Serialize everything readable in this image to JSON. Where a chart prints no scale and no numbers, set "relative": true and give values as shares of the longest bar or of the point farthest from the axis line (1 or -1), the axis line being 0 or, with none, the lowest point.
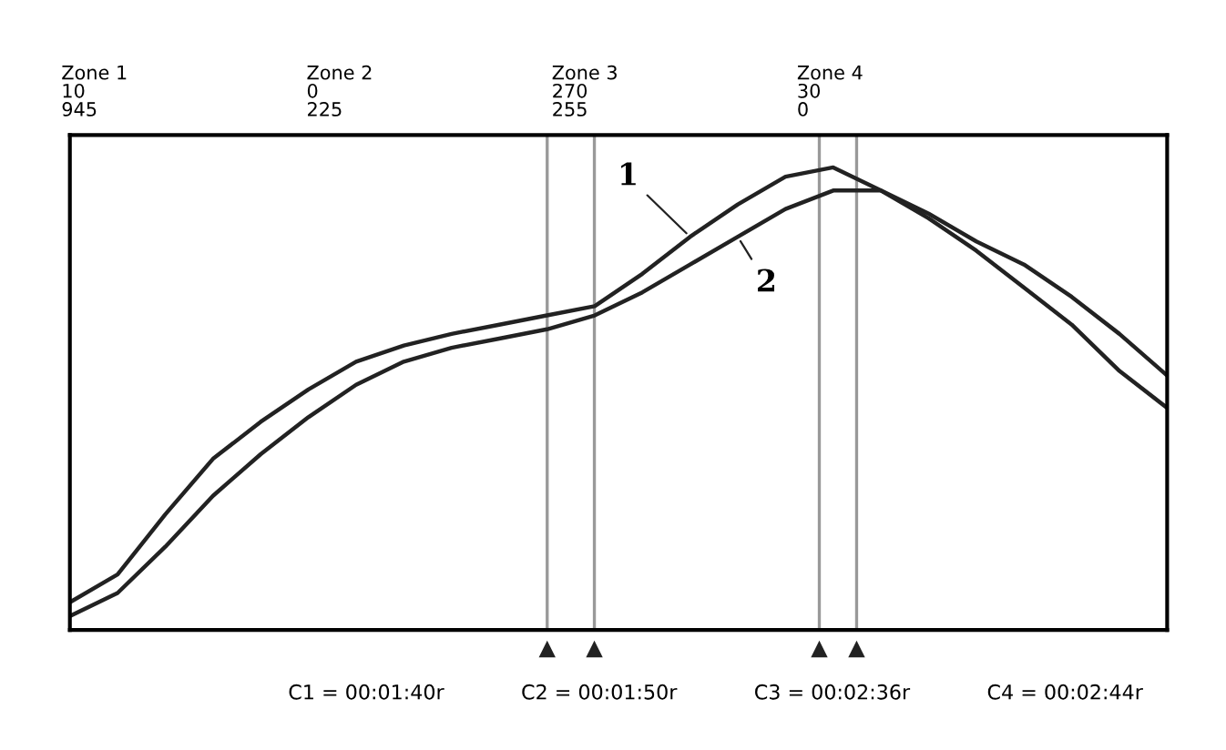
{
  "chart_data": {
    "type": "line",
    "relative": true,
    "categories": [
      null,
      null,
      null,
      null,
      null,
      null,
      null,
      null,
      null,
      null,
      null,
      null,
      null,
      null,
      null,
      null,
      null,
      null,
      null,
      null,
      null,
      null,
      null,
      null
    ],
    "annotations": [
      "Zone 1\n10\n945",
      "Zone 2\n0\n225",
      "Zone 3\n270\n255",
      "Zone 4\n30\n0",
      "C1 = 00:01:40r",
      "C2 = 00:01:50r",
      "C3 = 00:02:36r",
      "C4 = 00:02:44r"
    ],
    "series": [
      {
        "name": "1",
        "color": "#222222",
        "values": [
          0.06,
          0.12,
          0.25,
          0.37,
          0.45,
          0.52,
          0.58,
          0.615,
          0.64,
          0.66,
          0.68,
          0.7,
          0.77,
          0.85,
          0.92,
          0.98,
          1.0,
          0.95,
          0.89,
          0.82,
          0.74,
          0.66,
          0.56,
          0.48
        ]
      },
      {
        "name": "2",
        "color": "#222222",
        "values": [
          0.03,
          0.08,
          0.18,
          0.29,
          0.38,
          0.46,
          0.53,
          0.58,
          0.61,
          0.63,
          0.65,
          0.68,
          0.73,
          0.79,
          0.85,
          0.91,
          0.95,
          0.95,
          0.9,
          0.84,
          0.79,
          0.72,
          0.64,
          0.55
        ]
      }
    ],
    "marker": "none",
    "line_style": "solid"
  }
}
